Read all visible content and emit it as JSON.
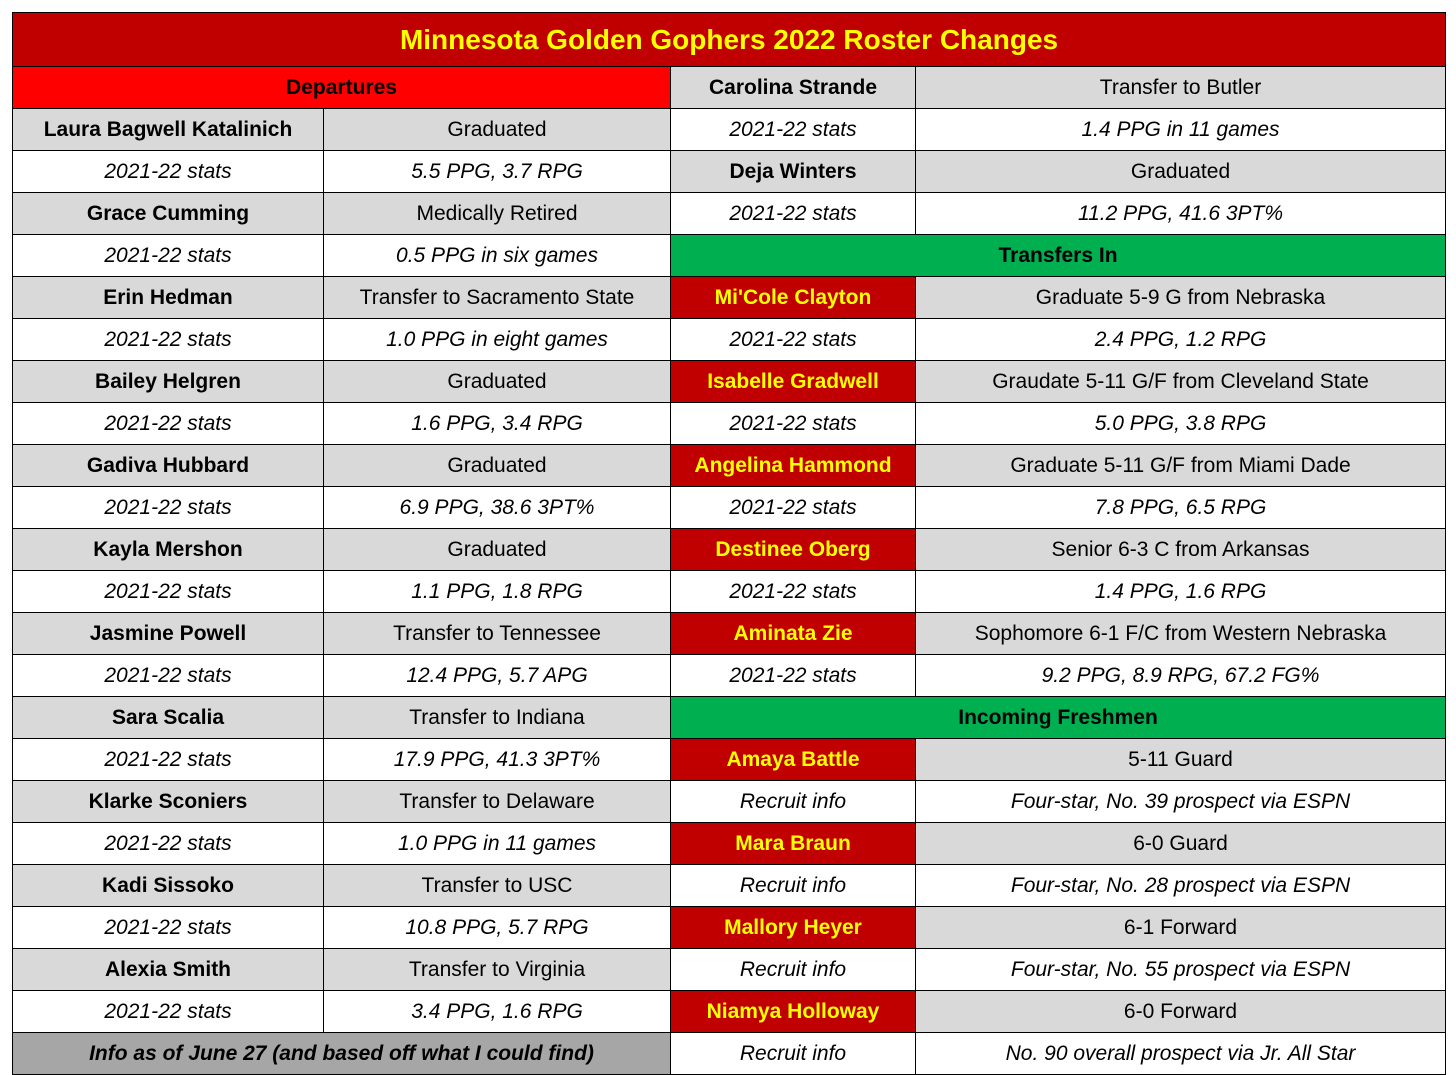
{
  "title": "Minnesota Golden Gophers 2022 Roster Changes",
  "sections": {
    "departures": "Departures",
    "transfers_in": "Transfers In",
    "incoming_freshmen": "Incoming Freshmen"
  },
  "footer_note": "Info as of June 27 (and based off what I could find)",
  "colors": {
    "title_bg": "#c00000",
    "title_text": "#ffff00",
    "departures_header": "#ff0000",
    "section_header_green": "#00b050",
    "name_row_gray": "#d9d9d9",
    "footer_gray": "#a6a6a6"
  },
  "departures": [
    {
      "name": "Laura Bagwell Katalinich",
      "status": "Graduated",
      "stats_label": "2021-22 stats",
      "stats": "5.5 PPG, 3.7 RPG"
    },
    {
      "name": "Grace Cumming",
      "status": "Medically Retired",
      "stats_label": "2021-22 stats",
      "stats": "0.5 PPG in six games"
    },
    {
      "name": "Erin Hedman",
      "status": "Transfer to Sacramento State",
      "stats_label": "2021-22 stats",
      "stats": "1.0 PPG in eight games"
    },
    {
      "name": "Bailey Helgren",
      "status": "Graduated",
      "stats_label": "2021-22 stats",
      "stats": "1.6 PPG, 3.4 RPG"
    },
    {
      "name": "Gadiva Hubbard",
      "status": "Graduated",
      "stats_label": "2021-22 stats",
      "stats": "6.9 PPG, 38.6 3PT%"
    },
    {
      "name": "Kayla Mershon",
      "status": "Graduated",
      "stats_label": "2021-22 stats",
      "stats": "1.1 PPG, 1.8 RPG"
    },
    {
      "name": "Jasmine Powell",
      "status": "Transfer to Tennessee",
      "stats_label": "2021-22 stats",
      "stats": "12.4 PPG, 5.7 APG"
    },
    {
      "name": "Sara Scalia",
      "status": "Transfer to Indiana",
      "stats_label": "2021-22 stats",
      "stats": "17.9 PPG, 41.3 3PT%"
    },
    {
      "name": "Klarke Sconiers",
      "status": "Transfer to Delaware",
      "stats_label": "2021-22 stats",
      "stats": "1.0 PPG in 11 games"
    },
    {
      "name": "Kadi Sissoko",
      "status": "Transfer to USC",
      "stats_label": "2021-22 stats",
      "stats": "10.8 PPG, 5.7 RPG"
    },
    {
      "name": "Alexia Smith",
      "status": "Transfer to Virginia",
      "stats_label": "2021-22 stats",
      "stats": "3.4 PPG, 1.6 RPG"
    }
  ],
  "departures_right": [
    {
      "name": "Carolina Strande",
      "status": "Transfer to Butler",
      "stats_label": "2021-22 stats",
      "stats": "1.4 PPG in 11 games"
    },
    {
      "name": "Deja Winters",
      "status": "Graduated",
      "stats_label": "2021-22 stats",
      "stats": "11.2 PPG, 41.6 3PT%"
    }
  ],
  "transfers_in": [
    {
      "name": "Mi'Cole Clayton",
      "info": "Graduate 5-9 G from Nebraska",
      "stats_label": "2021-22 stats",
      "stats": "2.4 PPG, 1.2 RPG"
    },
    {
      "name": "Isabelle Gradwell",
      "info": "Graudate 5-11 G/F from Cleveland State",
      "stats_label": "2021-22 stats",
      "stats": "5.0 PPG, 3.8 RPG"
    },
    {
      "name": "Angelina Hammond",
      "info": "Graduate 5-11 G/F from Miami Dade",
      "stats_label": "2021-22 stats",
      "stats": "7.8 PPG, 6.5 RPG"
    },
    {
      "name": "Destinee Oberg",
      "info": "Senior 6-3 C from Arkansas",
      "stats_label": "2021-22 stats",
      "stats": "1.4 PPG, 1.6 RPG"
    },
    {
      "name": "Aminata Zie",
      "info": "Sophomore 6-1 F/C from Western Nebraska",
      "stats_label": "2021-22 stats",
      "stats": "9.2 PPG, 8.9 RPG, 67.2 FG%"
    }
  ],
  "freshmen": [
    {
      "name": "Amaya Battle",
      "info": "5-11 Guard",
      "recruit_label": "Recruit info",
      "recruit": "Four-star, No. 39 prospect via ESPN"
    },
    {
      "name": "Mara Braun",
      "info": "6-0 Guard",
      "recruit_label": "Recruit info",
      "recruit": "Four-star, No. 28 prospect via ESPN"
    },
    {
      "name": "Mallory Heyer",
      "info": "6-1 Forward",
      "recruit_label": "Recruit info",
      "recruit": "Four-star, No. 55 prospect via ESPN"
    },
    {
      "name": "Niamya Holloway",
      "info": "6-0 Forward",
      "recruit_label": "Recruit info",
      "recruit": "No. 90 overall prospect via Jr. All Star"
    }
  ]
}
